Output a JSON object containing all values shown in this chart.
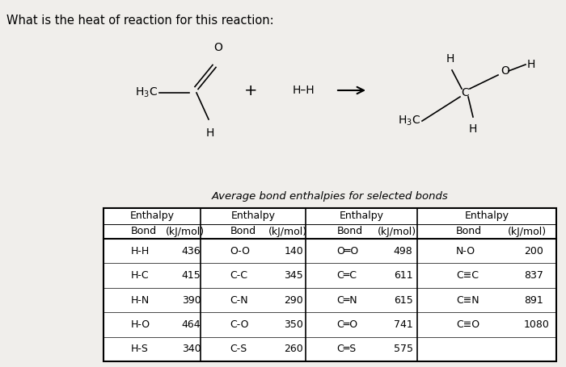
{
  "title_question": "What is the heat of reaction for this reaction:",
  "table_title": "Average bond enthalpies for selected bonds",
  "background_color": "#f0eeeb",
  "table_background": "#d8d4ce",
  "table_data": {
    "col1": {
      "header1": "Enthalpy",
      "header2_bond": "Bond",
      "header2_unit": "(kJ/mol)",
      "rows": [
        [
          "H-H",
          "436"
        ],
        [
          "H-C",
          "415"
        ],
        [
          "H-N",
          "390"
        ],
        [
          "H-O",
          "464"
        ],
        [
          "H-S",
          "340"
        ]
      ]
    },
    "col2": {
      "header1": "Enthalpy",
      "header2_bond": "Bond",
      "header2_unit": "(kJ/mol)",
      "rows": [
        [
          "O-O",
          "140"
        ],
        [
          "C-C",
          "345"
        ],
        [
          "C-N",
          "290"
        ],
        [
          "C-O",
          "350"
        ],
        [
          "C-S",
          "260"
        ]
      ]
    },
    "col3": {
      "header1": "Enthalpy",
      "header2_bond": "Bond",
      "header2_unit": "(kJ/mol)",
      "rows": [
        [
          "O═O",
          "498"
        ],
        [
          "C═C",
          "611"
        ],
        [
          "C═N",
          "615"
        ],
        [
          "C═O",
          "741"
        ],
        [
          "C═S",
          "575"
        ]
      ]
    },
    "col4": {
      "header1": "Enthalpy",
      "header2_bond": "Bond",
      "header2_unit": "(kJ/mol)",
      "rows": [
        [
          "N-O",
          "200"
        ],
        [
          "C≡C",
          "837"
        ],
        [
          "C≡N",
          "891"
        ],
        [
          "C≡O",
          "1080"
        ]
      ]
    }
  },
  "font_size_question": 10.5,
  "font_size_table_header": 9.0,
  "font_size_table_data": 9.0,
  "font_size_struct": 10.0
}
